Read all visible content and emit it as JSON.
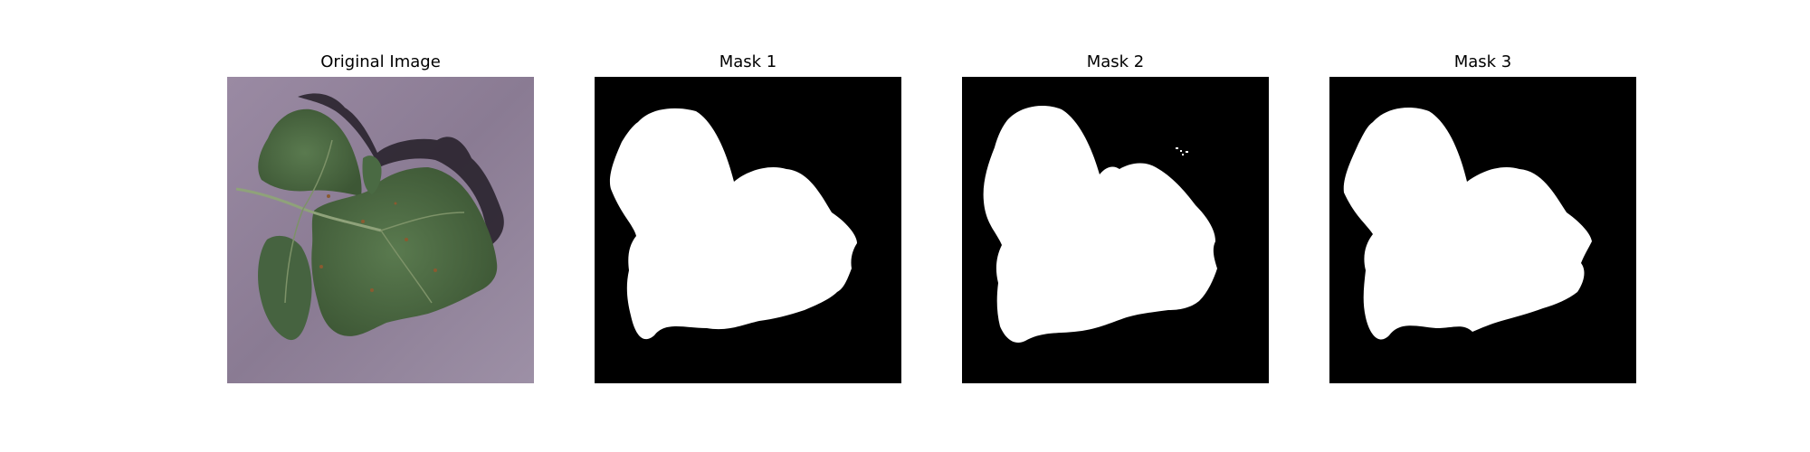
{
  "figure": {
    "panels": [
      {
        "title": "Original Image",
        "kind": "photo"
      },
      {
        "title": "Mask 1",
        "kind": "mask"
      },
      {
        "title": "Mask 2",
        "kind": "mask"
      },
      {
        "title": "Mask 3",
        "kind": "mask"
      }
    ],
    "colors": {
      "background": "#ffffff",
      "mask_foreground": "#ffffff",
      "mask_background": "#000000",
      "photo_background": "#8e8096",
      "leaf": "#4f6b45",
      "leaf_dark": "#3e5937",
      "leaf_vein": "#8fa27a",
      "shadow": "#231d27"
    }
  }
}
